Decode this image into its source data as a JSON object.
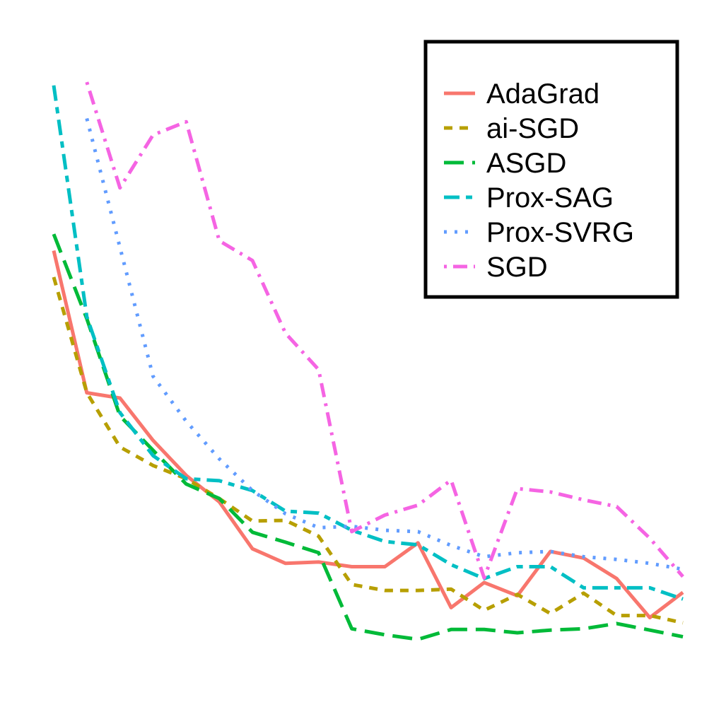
{
  "chart_data": {
    "type": "line",
    "title": "",
    "xlabel": "",
    "ylabel": "",
    "x": [
      1,
      2,
      3,
      4,
      5,
      6,
      7,
      8,
      9,
      10,
      11,
      12,
      13,
      14,
      15,
      16,
      17,
      18,
      19,
      20
    ],
    "xlim": [
      1,
      20
    ],
    "ylim": [
      0,
      1
    ],
    "grid": false,
    "axes_visible": false,
    "legend_position": "top-right",
    "series": [
      {
        "name": "AdaGrad",
        "color": "#F8766D",
        "line_style": "solid",
        "values": [
          0.685,
          0.47,
          0.462,
          0.398,
          0.345,
          0.305,
          0.234,
          0.212,
          0.214,
          0.207,
          0.207,
          0.243,
          0.145,
          0.183,
          0.163,
          0.23,
          0.22,
          0.189,
          0.13,
          0.168
        ]
      },
      {
        "name": "ai-SGD",
        "color": "#B79F00",
        "line_style": "dashed",
        "values": [
          0.645,
          0.47,
          0.388,
          0.36,
          0.34,
          0.31,
          0.276,
          0.277,
          0.253,
          0.18,
          0.171,
          0.171,
          0.173,
          0.141,
          0.165,
          0.136,
          0.167,
          0.133,
          0.133,
          0.122
        ]
      },
      {
        "name": "ASGD",
        "color": "#00BA38",
        "line_style": "longdash",
        "values": [
          0.71,
          0.582,
          0.435,
          0.383,
          0.332,
          0.31,
          0.259,
          0.244,
          0.228,
          0.113,
          0.104,
          0.097,
          0.112,
          0.112,
          0.107,
          0.111,
          0.113,
          0.121,
          0.111,
          0.101
        ]
      },
      {
        "name": "Prox-SAG",
        "color": "#00BFC4",
        "line_style": "twodash",
        "values": [
          0.935,
          0.585,
          0.44,
          0.375,
          0.34,
          0.337,
          0.322,
          0.291,
          0.288,
          0.262,
          0.245,
          0.24,
          0.21,
          0.189,
          0.207,
          0.207,
          0.175,
          0.175,
          0.175,
          0.158
        ]
      },
      {
        "name": "Prox-SVRG",
        "color": "#619CFF",
        "line_style": "dotted",
        "values": [
          null,
          0.885,
          0.69,
          0.495,
          0.427,
          0.37,
          0.322,
          0.287,
          0.266,
          0.268,
          0.262,
          0.26,
          0.239,
          0.222,
          0.228,
          0.23,
          0.222,
          0.218,
          0.212,
          0.203
        ]
      },
      {
        "name": "SGD",
        "color": "#F564E3",
        "line_style": "dotdash",
        "values": [
          null,
          0.94,
          0.78,
          0.86,
          0.88,
          0.7,
          0.67,
          0.56,
          0.505,
          0.26,
          0.285,
          0.3,
          0.338,
          0.19,
          0.325,
          0.32,
          0.308,
          0.298,
          0.25,
          0.192
        ]
      }
    ]
  }
}
